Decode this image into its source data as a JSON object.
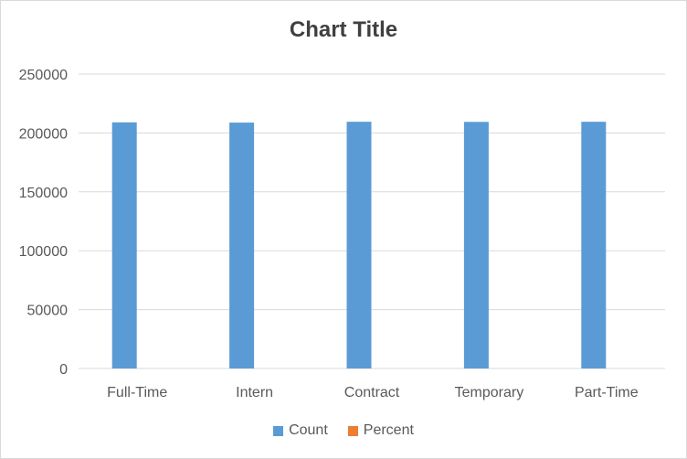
{
  "chart_data": {
    "type": "bar",
    "title": "Chart Title",
    "categories": [
      "Full-Time",
      "Intern",
      "Contract",
      "Temporary",
      "Part-Time"
    ],
    "series": [
      {
        "name": "Count",
        "values": [
          209000,
          208800,
          209500,
          209400,
          209500
        ],
        "color": "#5b9bd5"
      },
      {
        "name": "Percent",
        "values": [
          0.2,
          0.2,
          0.2,
          0.2,
          0.2
        ],
        "color": "#ed7d31"
      }
    ],
    "yticks": [
      0,
      50000,
      100000,
      150000,
      200000,
      250000
    ],
    "ylim": [
      0,
      250000
    ],
    "grid": true,
    "legend_position": "bottom"
  }
}
